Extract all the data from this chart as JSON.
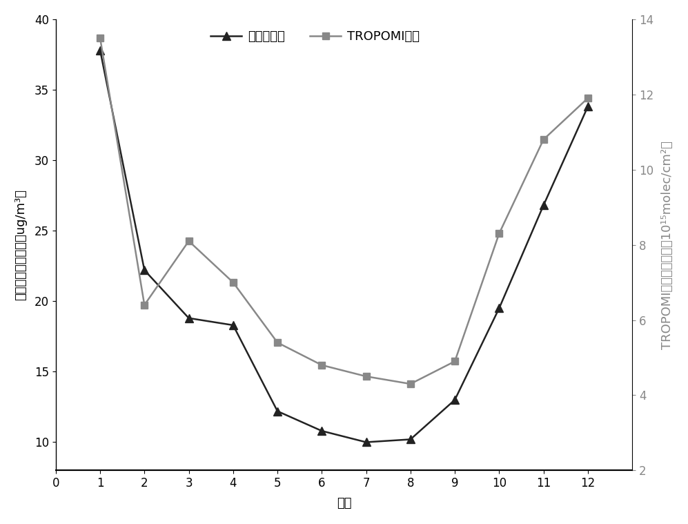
{
  "months": [
    1,
    2,
    3,
    4,
    5,
    6,
    7,
    8,
    9,
    10,
    11,
    12
  ],
  "station_values": [
    37.8,
    22.2,
    18.8,
    18.3,
    12.2,
    10.8,
    10.0,
    10.2,
    13.0,
    19.5,
    26.8,
    33.8
  ],
  "tropomi_values": [
    13.5,
    6.4,
    8.1,
    7.0,
    5.4,
    4.8,
    4.5,
    4.3,
    4.9,
    8.3,
    10.8,
    11.9
  ],
  "station_color": "#222222",
  "tropomi_color": "#888888",
  "left_ylim": [
    8,
    40
  ],
  "right_ylim": [
    2,
    14
  ],
  "left_yticks": [
    10,
    15,
    20,
    25,
    30,
    35,
    40
  ],
  "right_yticks": [
    2,
    4,
    6,
    8,
    10,
    12,
    14
  ],
  "xlim": [
    0,
    13
  ],
  "xticks": [
    0,
    1,
    2,
    3,
    4,
    5,
    6,
    7,
    8,
    9,
    10,
    11,
    12
  ],
  "xlabel": "月份",
  "ylabel_left": "国控站点质量浓度（ug/m³）",
  "ylabel_right_line1": "TROPOMI对流层柱浓度（10¹⁵molec/cm²）",
  "legend_station": "站点监测值",
  "legend_tropomi": "TROPOMI数据",
  "axis_fontsize": 13,
  "tick_fontsize": 12,
  "legend_fontsize": 13
}
